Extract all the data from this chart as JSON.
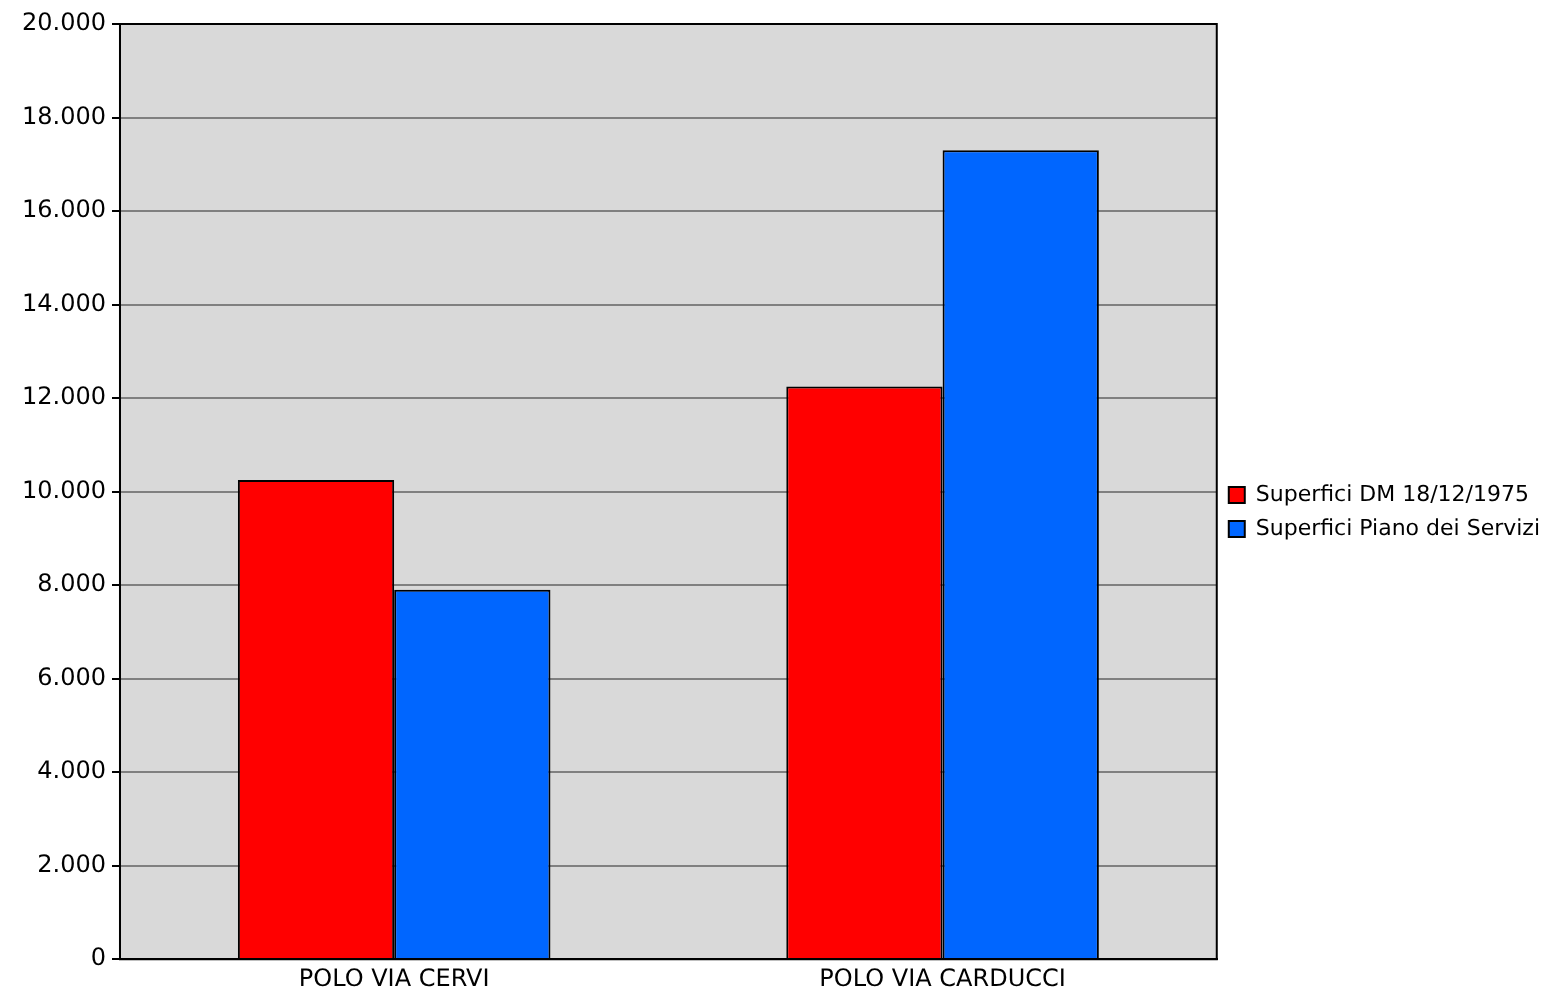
{
  "chart_data": {
    "type": "bar",
    "categories": [
      "POLO VIA CERVI",
      "POLO VIA CARDUCCI"
    ],
    "series": [
      {
        "name": "Superfici DM 18/12/1975",
        "color": "#ff0000",
        "values": [
          10250,
          12250
        ]
      },
      {
        "name": "Superfici Piano dei Servizi",
        "color": "#0066ff",
        "values": [
          7900,
          17300
        ]
      }
    ],
    "ylim": [
      0,
      20000
    ],
    "yticks": [
      {
        "value": 0,
        "label": "0"
      },
      {
        "value": 2000,
        "label": "2.000"
      },
      {
        "value": 4000,
        "label": "4.000"
      },
      {
        "value": 6000,
        "label": "6.000"
      },
      {
        "value": 8000,
        "label": "8.000"
      },
      {
        "value": 10000,
        "label": "10.000"
      },
      {
        "value": 12000,
        "label": "12.000"
      },
      {
        "value": 14000,
        "label": "14.000"
      },
      {
        "value": 16000,
        "label": "16.000"
      },
      {
        "value": 18000,
        "label": "18.000"
      },
      {
        "value": 20000,
        "label": "20.000"
      }
    ],
    "grid": "y",
    "legend": "right"
  }
}
